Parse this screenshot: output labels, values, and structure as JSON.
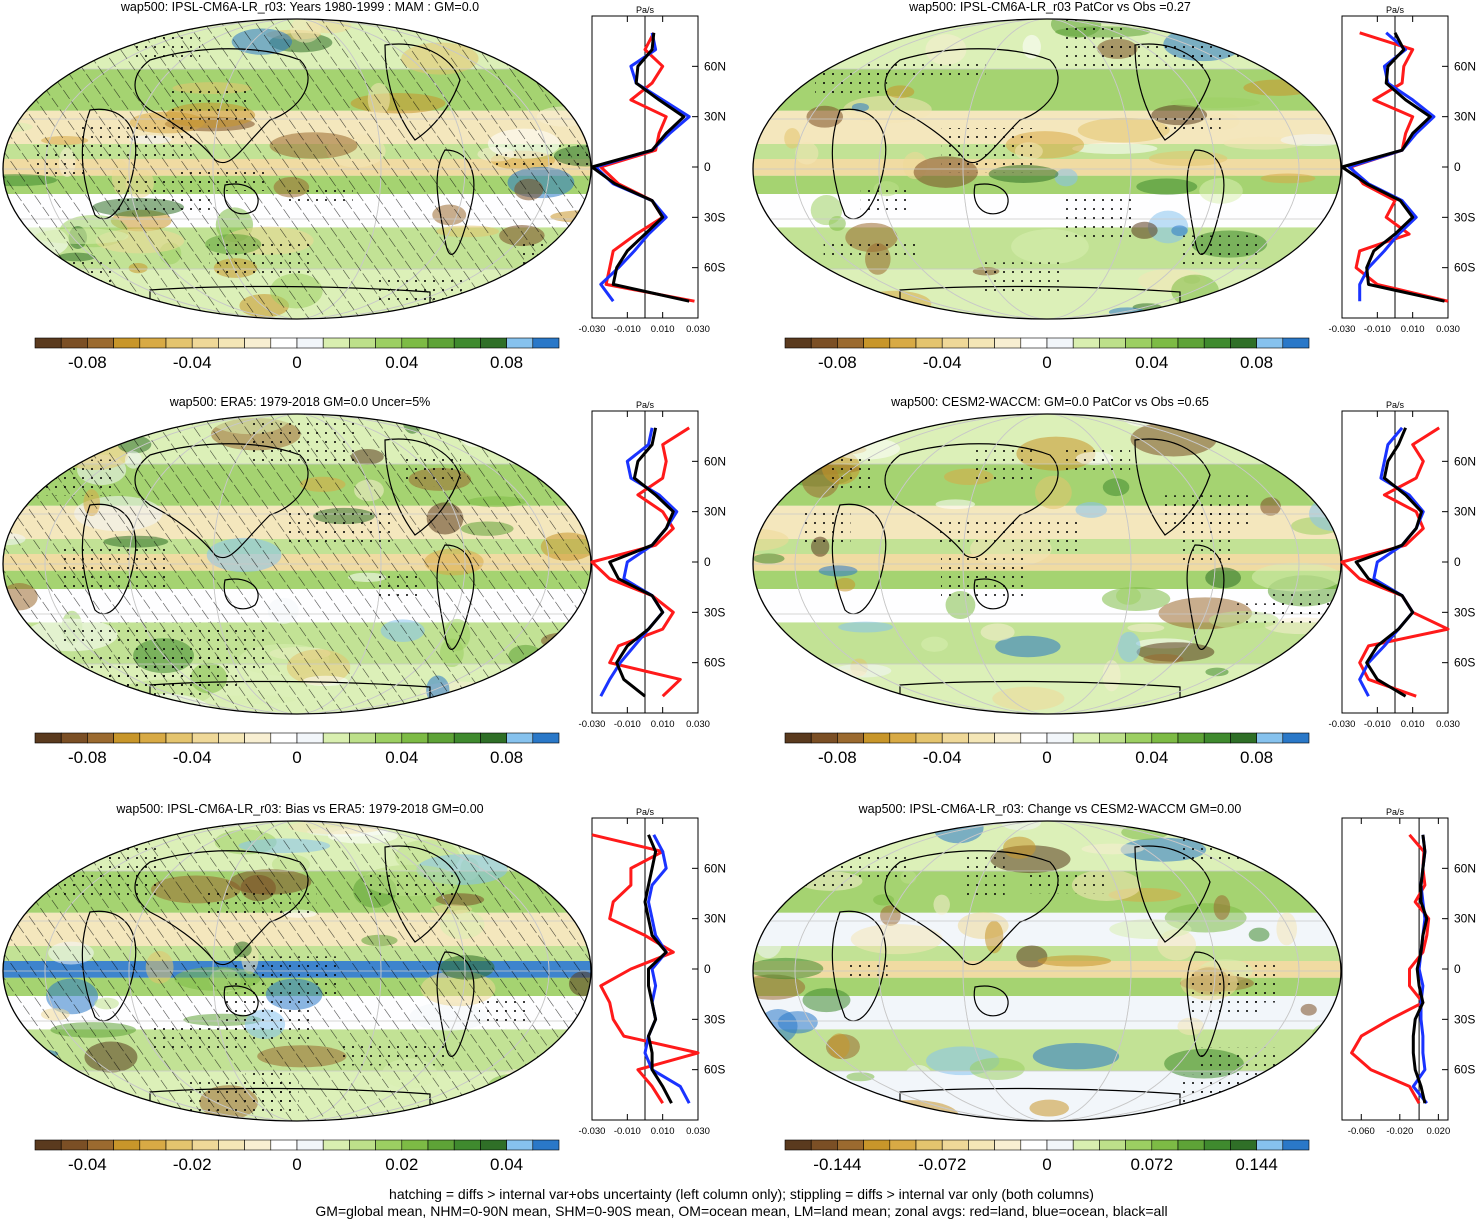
{
  "colors": {
    "red": "#ff1a1a",
    "blue": "#1a33ff",
    "black": "#000000",
    "palette": [
      "#5a3a1e",
      "#7b4f25",
      "#9b6a2f",
      "#c8962a",
      "#d8aa45",
      "#e4c46e",
      "#efd898",
      "#f4e6b6",
      "#f8efd2",
      "#ffffff",
      "#f2f6fa",
      "#d9efb0",
      "#bde08a",
      "#9ccf62",
      "#7dbb45",
      "#5ea337",
      "#3f8a2e",
      "#2f6f27",
      "#86c2ee",
      "#2a78c8"
    ]
  },
  "footer": {
    "line1": "hatching = diffs > internal var+obs uncertainty (left column only); stippling = diffs > internal var only (both columns)",
    "line2": "GM=global mean, NHM=0-90N mean, SHM=0-90S mean, OM=ocean mean, LM=land mean; zonal avgs: red=land, blue=ocean, black=all"
  },
  "panels": [
    {
      "title": "wap500: IPSL-CM6A-LR_r03: Years 1980-1999 : MAM : GM=0.0",
      "zonal_unit": "Pa/s",
      "zonal_lat_labels": [
        "60N",
        "30N",
        "0",
        "30S",
        "60S"
      ],
      "zonal_x_labels": [
        "-0.030",
        "-0.010",
        "0.010",
        "0.030"
      ],
      "colorbar_labels": [
        "-0.08",
        "-0.04",
        "0",
        "0.04",
        "0.08"
      ],
      "colorbar_values": [
        -0.08,
        -0.04,
        0,
        0.04,
        0.08
      ],
      "colorbar_range": [
        -0.1,
        0.1
      ]
    },
    {
      "title": "wap500: IPSL-CM6A-LR_r03 PatCor vs Obs =0.27",
      "zonal_unit": "Pa/s",
      "zonal_lat_labels": [
        "60N",
        "30N",
        "0",
        "30S",
        "60S"
      ],
      "zonal_x_labels": [
        "-0.030",
        "-0.010",
        "0.010",
        "0.030"
      ],
      "colorbar_labels": [
        "-0.08",
        "-0.04",
        "0",
        "0.04",
        "0.08"
      ],
      "colorbar_values": [
        -0.08,
        -0.04,
        0,
        0.04,
        0.08
      ],
      "colorbar_range": [
        -0.1,
        0.1
      ]
    },
    {
      "title": "wap500: ERA5: 1979-2018 GM=0.0 Uncer=5%",
      "zonal_unit": "Pa/s",
      "zonal_lat_labels": [
        "60N",
        "30N",
        "0",
        "30S",
        "60S"
      ],
      "zonal_x_labels": [
        "-0.030",
        "-0.010",
        "0.010",
        "0.030"
      ],
      "colorbar_labels": [
        "-0.08",
        "-0.04",
        "0",
        "0.04",
        "0.08"
      ],
      "colorbar_values": [
        -0.08,
        -0.04,
        0,
        0.04,
        0.08
      ],
      "colorbar_range": [
        -0.1,
        0.1
      ]
    },
    {
      "title": "wap500: CESM2-WACCM: GM=0.0 PatCor vs Obs =0.65",
      "zonal_unit": "Pa/s",
      "zonal_lat_labels": [
        "60N",
        "30N",
        "0",
        "30S",
        "60S"
      ],
      "zonal_x_labels": [
        "-0.030",
        "-0.010",
        "0.010",
        "0.030"
      ],
      "colorbar_labels": [
        "-0.08",
        "-0.04",
        "0",
        "0.04",
        "0.08"
      ],
      "colorbar_values": [
        -0.08,
        -0.04,
        0,
        0.04,
        0.08
      ],
      "colorbar_range": [
        -0.1,
        0.1
      ]
    },
    {
      "title": "wap500: IPSL-CM6A-LR_r03: Bias vs ERA5: 1979-2018 GM=0.00",
      "zonal_unit": "Pa/s",
      "zonal_lat_labels": [
        "60N",
        "30N",
        "0",
        "30S",
        "60S"
      ],
      "zonal_x_labels": [
        "-0.030",
        "-0.010",
        "0.010",
        "0.030"
      ],
      "colorbar_labels": [
        "-0.04",
        "-0.02",
        "0",
        "0.02",
        "0.04"
      ],
      "colorbar_values": [
        -0.04,
        -0.02,
        0,
        0.02,
        0.04
      ],
      "colorbar_range": [
        -0.05,
        0.05
      ]
    },
    {
      "title": "wap500: IPSL-CM6A-LR_r03: Change vs CESM2-WACCM GM=0.00",
      "zonal_unit": "Pa/s",
      "zonal_lat_labels": [
        "60N",
        "30N",
        "0",
        "30S",
        "60S"
      ],
      "zonal_x_labels": [
        "-0.060",
        "-0.020",
        "0.020"
      ],
      "colorbar_labels": [
        "-0.144",
        "-0.072",
        "0",
        "0.072",
        "0.144"
      ],
      "colorbar_values": [
        -0.144,
        -0.072,
        0,
        0.072,
        0.144
      ],
      "colorbar_range": [
        -0.18,
        0.18
      ]
    }
  ],
  "chart_data": [
    {
      "type": "heatmap",
      "title": "wap500: IPSL-CM6A-LR_r03: Years 1980-1999 : MAM : GM=0.0",
      "colorbar": [
        -0.08,
        -0.04,
        0,
        0.04,
        0.08
      ],
      "hatching": true,
      "zonal_mean": {
        "type": "line",
        "ylabel": "",
        "xunit": "Pa/s",
        "xlim": [
          -0.03,
          0.03
        ],
        "lat": [
          80,
          70,
          60,
          50,
          40,
          30,
          20,
          10,
          0,
          -10,
          -20,
          -30,
          -40,
          -50,
          -60,
          -70,
          -80
        ],
        "series": [
          {
            "name": "red=land",
            "values": [
              0.005,
              0.0,
              0.01,
              0.004,
              -0.008,
              0.012,
              0.008,
              0.006,
              -0.025,
              -0.015,
              0.004,
              0.01,
              -0.005,
              -0.018,
              -0.02,
              -0.022,
              0.028
            ]
          },
          {
            "name": "blue=ocean",
            "values": [
              0.004,
              0.006,
              -0.008,
              -0.005,
              0.01,
              0.025,
              0.014,
              0.004,
              -0.028,
              -0.018,
              0.004,
              0.012,
              0.002,
              -0.006,
              -0.015,
              -0.025,
              -0.018
            ]
          },
          {
            "name": "black=all",
            "values": [
              0.005,
              0.004,
              -0.004,
              -0.005,
              0.008,
              0.022,
              0.012,
              0.004,
              -0.03,
              -0.017,
              0.004,
              0.01,
              0.0,
              -0.01,
              -0.016,
              -0.018,
              0.025
            ]
          }
        ]
      }
    },
    {
      "type": "heatmap",
      "title": "wap500: IPSL-CM6A-LR_r03 PatCor vs Obs =0.27",
      "colorbar": [
        -0.08,
        -0.04,
        0,
        0.04,
        0.08
      ],
      "hatching": false,
      "zonal_mean": {
        "type": "line",
        "xunit": "Pa/s",
        "xlim": [
          -0.03,
          0.03
        ],
        "lat": [
          80,
          70,
          60,
          50,
          40,
          30,
          20,
          10,
          0,
          -10,
          -20,
          -30,
          -40,
          -50,
          -60,
          -70,
          -80
        ],
        "series": [
          {
            "name": "red=land",
            "values": [
              -0.02,
              0.01,
              0.005,
              0.004,
              -0.012,
              0.01,
              0.006,
              0.004,
              -0.025,
              -0.018,
              0.0,
              -0.005,
              0.008,
              -0.02,
              -0.022,
              -0.01,
              0.03
            ]
          },
          {
            "name": "blue=ocean",
            "values": [
              -0.005,
              0.006,
              -0.006,
              -0.004,
              0.01,
              0.022,
              0.012,
              0.004,
              -0.026,
              -0.015,
              0.004,
              0.012,
              0.002,
              -0.006,
              -0.015,
              -0.02,
              -0.02
            ]
          },
          {
            "name": "black=all",
            "values": [
              0.0,
              0.005,
              -0.004,
              -0.005,
              0.006,
              0.02,
              0.01,
              0.004,
              -0.03,
              -0.016,
              0.003,
              0.01,
              0.0,
              -0.012,
              -0.016,
              -0.015,
              0.028
            ]
          }
        ]
      }
    },
    {
      "type": "heatmap",
      "title": "wap500: ERA5: 1979-2018 GM=0.0 Uncer=5%",
      "colorbar": [
        -0.08,
        -0.04,
        0,
        0.04,
        0.08
      ],
      "hatching": true,
      "zonal_mean": {
        "type": "line",
        "xunit": "Pa/s",
        "xlim": [
          -0.03,
          0.03
        ],
        "lat": [
          80,
          70,
          60,
          50,
          40,
          30,
          20,
          10,
          0,
          -10,
          -20,
          -30,
          -40,
          -50,
          -60,
          -70,
          -80
        ],
        "series": [
          {
            "name": "red=land",
            "values": [
              0.025,
              0.01,
              0.012,
              0.01,
              -0.004,
              0.01,
              0.016,
              0.006,
              -0.03,
              -0.02,
              0.004,
              0.016,
              0.01,
              -0.015,
              -0.02,
              0.02,
              0.01
            ]
          },
          {
            "name": "blue=ocean",
            "values": [
              0.004,
              0.002,
              -0.01,
              -0.008,
              0.008,
              0.018,
              0.012,
              0.004,
              -0.01,
              -0.012,
              0.004,
              0.01,
              0.002,
              -0.006,
              -0.014,
              -0.02,
              -0.025
            ]
          },
          {
            "name": "black=all",
            "values": [
              0.006,
              0.004,
              -0.004,
              -0.006,
              0.006,
              0.016,
              0.012,
              0.004,
              -0.02,
              -0.015,
              0.004,
              0.01,
              0.002,
              -0.01,
              -0.016,
              -0.012,
              0.0
            ]
          }
        ]
      }
    },
    {
      "type": "heatmap",
      "title": "wap500: CESM2-WACCM: GM=0.0 PatCor vs Obs =0.65",
      "colorbar": [
        -0.08,
        -0.04,
        0,
        0.04,
        0.08
      ],
      "hatching": false,
      "zonal_mean": {
        "type": "line",
        "xunit": "Pa/s",
        "xlim": [
          -0.03,
          0.03
        ],
        "lat": [
          80,
          70,
          60,
          50,
          40,
          30,
          20,
          10,
          0,
          -10,
          -20,
          -30,
          -40,
          -50,
          -60,
          -70,
          -80
        ],
        "series": [
          {
            "name": "red=land",
            "values": [
              0.025,
              0.01,
              0.016,
              0.012,
              -0.006,
              0.012,
              0.016,
              0.006,
              -0.03,
              -0.02,
              0.004,
              0.01,
              0.03,
              -0.015,
              -0.02,
              -0.015,
              0.012
            ]
          },
          {
            "name": "blue=ocean",
            "values": [
              0.004,
              -0.004,
              -0.006,
              -0.008,
              0.008,
              0.016,
              0.012,
              0.004,
              -0.01,
              -0.012,
              0.004,
              0.01,
              0.002,
              -0.006,
              -0.015,
              -0.02,
              -0.015
            ]
          },
          {
            "name": "black=all",
            "values": [
              0.006,
              0.002,
              -0.004,
              -0.006,
              0.006,
              0.015,
              0.012,
              0.004,
              -0.022,
              -0.015,
              0.004,
              0.01,
              0.002,
              -0.01,
              -0.016,
              -0.01,
              0.006
            ]
          }
        ]
      }
    },
    {
      "type": "heatmap",
      "title": "wap500: IPSL-CM6A-LR_r03: Bias vs ERA5: 1979-2018 GM=0.00",
      "colorbar": [
        -0.04,
        -0.02,
        0,
        0.02,
        0.04
      ],
      "hatching": true,
      "zonal_mean": {
        "type": "line",
        "xunit": "Pa/s",
        "xlim": [
          -0.03,
          0.03
        ],
        "lat": [
          80,
          70,
          60,
          50,
          40,
          30,
          20,
          10,
          0,
          -10,
          -20,
          -30,
          -40,
          -50,
          -60,
          -70,
          -80
        ],
        "series": [
          {
            "name": "red=land",
            "values": [
              -0.03,
              0.01,
              -0.008,
              -0.008,
              -0.018,
              -0.02,
              0.0,
              0.016,
              -0.008,
              -0.025,
              -0.02,
              -0.018,
              -0.012,
              0.03,
              -0.004,
              0.004,
              0.01
            ]
          },
          {
            "name": "blue=ocean",
            "values": [
              0.005,
              0.01,
              0.012,
              0.004,
              0.002,
              0.004,
              0.006,
              0.012,
              0.004,
              0.006,
              0.004,
              0.006,
              0.002,
              0.0,
              0.004,
              0.02,
              0.025
            ]
          },
          {
            "name": "black=all",
            "values": [
              0.002,
              0.006,
              0.004,
              0.002,
              0.0,
              0.002,
              0.004,
              0.012,
              0.002,
              0.002,
              0.004,
              0.006,
              0.002,
              0.004,
              0.004,
              0.01,
              0.015
            ]
          }
        ]
      }
    },
    {
      "type": "heatmap",
      "title": "wap500: IPSL-CM6A-LR_r03: Change vs CESM2-WACCM GM=0.00",
      "colorbar": [
        -0.144,
        -0.072,
        0,
        0.072,
        0.144
      ],
      "hatching": false,
      "zonal_mean": {
        "type": "line",
        "xunit": "Pa/s",
        "xlim": [
          -0.08,
          0.03
        ],
        "lat": [
          80,
          70,
          60,
          50,
          40,
          30,
          20,
          10,
          0,
          -10,
          -20,
          -30,
          -40,
          -50,
          -60,
          -70,
          -80
        ],
        "series": [
          {
            "name": "red=land",
            "values": [
              -0.01,
              0.005,
              0.004,
              0.006,
              -0.004,
              0.01,
              0.008,
              0.004,
              -0.01,
              -0.01,
              0.004,
              -0.03,
              -0.06,
              -0.07,
              -0.05,
              -0.01,
              0.0
            ]
          },
          {
            "name": "blue=ocean",
            "values": [
              0.004,
              0.006,
              0.004,
              0.002,
              0.004,
              0.006,
              0.004,
              0.002,
              0.0,
              0.004,
              0.002,
              0.002,
              0.004,
              0.004,
              0.006,
              -0.006,
              0.008
            ]
          },
          {
            "name": "black=all",
            "values": [
              0.004,
              0.006,
              0.004,
              0.002,
              0.002,
              0.008,
              0.004,
              0.002,
              -0.002,
              0.0,
              0.004,
              -0.004,
              -0.006,
              -0.006,
              -0.004,
              0.002,
              0.006
            ]
          }
        ]
      }
    }
  ]
}
